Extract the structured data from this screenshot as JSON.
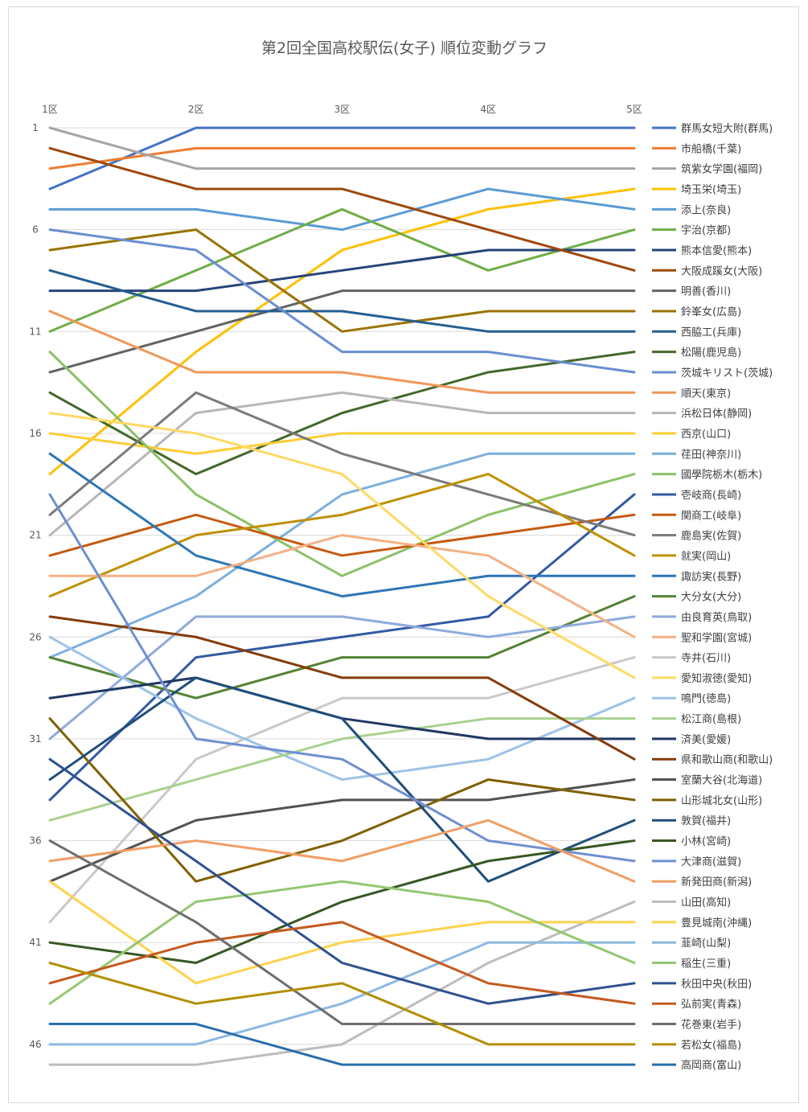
{
  "chart_data": {
    "type": "line",
    "title": "第2回全国高校駅伝(女子) 順位変動グラフ",
    "categories": [
      "1区",
      "2区",
      "3区",
      "4区",
      "5区"
    ],
    "y_ticks": [
      1,
      6,
      11,
      16,
      21,
      26,
      31,
      36,
      41,
      46
    ],
    "ylim": [
      47,
      1
    ],
    "y_reversed": true,
    "grid": true,
    "legend_position": "right",
    "series": [
      {
        "name": "群馬女短大附(群馬)",
        "color": "#4472C4",
        "values": [
          4,
          1,
          1,
          1,
          1
        ]
      },
      {
        "name": "市船橋(千葉)",
        "color": "#ED7D31",
        "values": [
          3,
          2,
          2,
          2,
          2
        ]
      },
      {
        "name": "筑紫女学園(福岡)",
        "color": "#A5A5A5",
        "values": [
          1,
          3,
          3,
          3,
          3
        ]
      },
      {
        "name": "埼玉栄(埼玉)",
        "color": "#FFC000",
        "values": [
          18,
          12,
          7,
          5,
          4
        ]
      },
      {
        "name": "添上(奈良)",
        "color": "#5B9BD5",
        "values": [
          5,
          5,
          6,
          4,
          5
        ]
      },
      {
        "name": "宇治(京都)",
        "color": "#70AD47",
        "values": [
          11,
          8,
          5,
          8,
          6
        ]
      },
      {
        "name": "熊本信愛(熊本)",
        "color": "#264478",
        "values": [
          9,
          9,
          8,
          7,
          7
        ]
      },
      {
        "name": "大阪成蹊女(大阪)",
        "color": "#9E480E",
        "values": [
          2,
          4,
          4,
          6,
          8
        ]
      },
      {
        "name": "明善(香川)",
        "color": "#636363",
        "values": [
          13,
          11,
          9,
          9,
          9
        ]
      },
      {
        "name": "鈴峯女(広島)",
        "color": "#997300",
        "values": [
          7,
          6,
          11,
          10,
          10
        ]
      },
      {
        "name": "西脇工(兵庫)",
        "color": "#255E91",
        "values": [
          8,
          10,
          10,
          11,
          11
        ]
      },
      {
        "name": "松陽(鹿児島)",
        "color": "#43682B",
        "values": [
          14,
          18,
          15,
          13,
          12
        ]
      },
      {
        "name": "茨城キリスト(茨城)",
        "color": "#698ED0",
        "values": [
          6,
          7,
          12,
          12,
          13
        ]
      },
      {
        "name": "順天(東京)",
        "color": "#F1975A",
        "values": [
          10,
          13,
          13,
          14,
          14
        ]
      },
      {
        "name": "浜松日体(静岡)",
        "color": "#B7B7B7",
        "values": [
          21,
          15,
          14,
          15,
          15
        ]
      },
      {
        "name": "西京(山口)",
        "color": "#FFCD33",
        "values": [
          16,
          17,
          16,
          16,
          16
        ]
      },
      {
        "name": "荏田(神奈川)",
        "color": "#7CAFDD",
        "values": [
          27,
          24,
          19,
          17,
          17
        ]
      },
      {
        "name": "國學院栃木(栃木)",
        "color": "#8CC168",
        "values": [
          12,
          19,
          23,
          20,
          18
        ]
      },
      {
        "name": "壱岐商(長崎)",
        "color": "#335AA1",
        "values": [
          34,
          27,
          26,
          25,
          19
        ]
      },
      {
        "name": "関商工(岐阜)",
        "color": "#C55A11",
        "values": [
          22,
          20,
          22,
          21,
          20
        ]
      },
      {
        "name": "鹿島実(佐賀)",
        "color": "#7B7B7B",
        "values": [
          20,
          14,
          17,
          19,
          21
        ]
      },
      {
        "name": "就実(岡山)",
        "color": "#BF9000",
        "values": [
          24,
          21,
          20,
          18,
          22
        ]
      },
      {
        "name": "諏訪実(長野)",
        "color": "#2E75B6",
        "values": [
          17,
          22,
          24,
          23,
          23
        ]
      },
      {
        "name": "大分女(大分)",
        "color": "#548235",
        "values": [
          27,
          29,
          27,
          27,
          24
        ]
      },
      {
        "name": "由良育英(鳥取)",
        "color": "#8FAADC",
        "values": [
          31,
          25,
          25,
          26,
          25
        ]
      },
      {
        "name": "聖和学園(宮城)",
        "color": "#F4B183",
        "values": [
          23,
          23,
          21,
          22,
          26
        ]
      },
      {
        "name": "寺井(石川)",
        "color": "#C9C9C9",
        "values": [
          40,
          32,
          29,
          29,
          27
        ]
      },
      {
        "name": "愛知淑徳(愛知)",
        "color": "#FFD966",
        "values": [
          15,
          16,
          18,
          24,
          28
        ]
      },
      {
        "name": "鳴門(徳島)",
        "color": "#9DC3E6",
        "values": [
          26,
          30,
          33,
          32,
          29
        ]
      },
      {
        "name": "松江商(島根)",
        "color": "#A9D18E",
        "values": [
          35,
          33,
          31,
          30,
          30
        ]
      },
      {
        "name": "済美(愛媛)",
        "color": "#203864",
        "values": [
          29,
          28,
          30,
          31,
          31
        ]
      },
      {
        "name": "県和歌山商(和歌山)",
        "color": "#843C0C",
        "values": [
          25,
          26,
          28,
          28,
          32
        ]
      },
      {
        "name": "室蘭大谷(北海道)",
        "color": "#525252",
        "values": [
          38,
          35,
          34,
          34,
          33
        ]
      },
      {
        "name": "山形城北女(山形)",
        "color": "#7F6000",
        "values": [
          30,
          38,
          36,
          33,
          34
        ]
      },
      {
        "name": "敦賀(福井)",
        "color": "#1F4E79",
        "values": [
          33,
          28,
          30,
          38,
          35
        ]
      },
      {
        "name": "小林(宮崎)",
        "color": "#385723",
        "values": [
          41,
          42,
          39,
          37,
          36
        ]
      },
      {
        "name": "大津商(滋賀)",
        "color": "#6F8FD1",
        "values": [
          19,
          31,
          32,
          36,
          37
        ]
      },
      {
        "name": "新発田商(新潟)",
        "color": "#F19E66",
        "values": [
          37,
          36,
          37,
          35,
          38
        ]
      },
      {
        "name": "山田(高知)",
        "color": "#BDBDBD",
        "values": [
          47,
          47,
          46,
          42,
          39
        ]
      },
      {
        "name": "豊見城南(沖縄)",
        "color": "#FFD24D",
        "values": [
          38,
          43,
          41,
          40,
          40
        ]
      },
      {
        "name": "韮崎(山梨)",
        "color": "#8DB9E2",
        "values": [
          46,
          46,
          44,
          41,
          41
        ]
      },
      {
        "name": "稲生(三重)",
        "color": "#94C770",
        "values": [
          44,
          39,
          38,
          39,
          42
        ]
      },
      {
        "name": "秋田中央(秋田)",
        "color": "#2F528F",
        "values": [
          32,
          37,
          42,
          44,
          43
        ]
      },
      {
        "name": "弘前実(青森)",
        "color": "#C55A20",
        "values": [
          43,
          41,
          40,
          43,
          44
        ]
      },
      {
        "name": "花巻東(岩手)",
        "color": "#6E6E6E",
        "values": [
          36,
          40,
          45,
          45,
          45
        ]
      },
      {
        "name": "若松女(福島)",
        "color": "#B28E00",
        "values": [
          42,
          44,
          43,
          46,
          46
        ]
      },
      {
        "name": "高岡商(富山)",
        "color": "#2A6EAE",
        "values": [
          45,
          45,
          47,
          47,
          47
        ]
      }
    ]
  }
}
